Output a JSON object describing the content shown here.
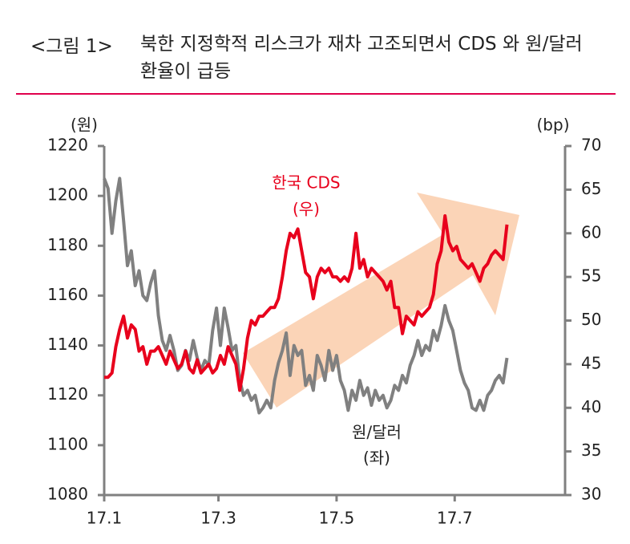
{
  "chart_data": {
    "type": "line",
    "figure_label": "<그림 1>",
    "title": "북한 지정학적 리스크가 재차 고조되면서 CDS 와 원/달러 환율이 급등",
    "y_label": "(원)",
    "y2_label": "(bp)",
    "xlim": [
      0,
      238
    ],
    "xticks": [
      {
        "value": 0,
        "label": "17.1"
      },
      {
        "value": 59,
        "label": "17.3"
      },
      {
        "value": 120,
        "label": "17.5"
      },
      {
        "value": 181,
        "label": "17.7"
      }
    ],
    "ylim": [
      1080,
      1220
    ],
    "yticks": [
      1080,
      1100,
      1120,
      1140,
      1160,
      1180,
      1200,
      1220
    ],
    "y2lim": [
      30,
      70
    ],
    "y2ticks": [
      30,
      35,
      40,
      45,
      50,
      55,
      60,
      65,
      70
    ],
    "annotations": [
      "(우)",
      "(좌)"
    ],
    "x": [
      0,
      2,
      4,
      6,
      8,
      10,
      12,
      14,
      16,
      18,
      20,
      22,
      24,
      26,
      28,
      30,
      32,
      34,
      36,
      38,
      40,
      42,
      44,
      46,
      48,
      50,
      52,
      54,
      56,
      58,
      60,
      62,
      64,
      66,
      68,
      70,
      72,
      74,
      76,
      78,
      80,
      82,
      84,
      86,
      88,
      90,
      92,
      94,
      96,
      98,
      100,
      102,
      104,
      106,
      108,
      110,
      112,
      114,
      116,
      118,
      120,
      122,
      124,
      126,
      128,
      130,
      132,
      134,
      136,
      138,
      140,
      142,
      144,
      146,
      148,
      150,
      152,
      154,
      156,
      158,
      160,
      162,
      164,
      166,
      168,
      170,
      172,
      174,
      176,
      178,
      180,
      182,
      184,
      186,
      188,
      190,
      192,
      194,
      196,
      198,
      200,
      202,
      204,
      206,
      208
    ],
    "series": [
      {
        "name": "원/달러",
        "color": "#808080",
        "axis": "y",
        "values": [
          1207,
          1203,
          1185,
          1198,
          1207,
          1190,
          1172,
          1178,
          1164,
          1170,
          1160,
          1158,
          1165,
          1170,
          1152,
          1142,
          1138,
          1144,
          1138,
          1130,
          1132,
          1138,
          1134,
          1142,
          1135,
          1130,
          1134,
          1132,
          1146,
          1155,
          1140,
          1155,
          1147,
          1138,
          1140,
          1126,
          1120,
          1122,
          1118,
          1120,
          1113,
          1115,
          1118,
          1115,
          1126,
          1133,
          1138,
          1145,
          1128,
          1140,
          1136,
          1138,
          1124,
          1128,
          1122,
          1136,
          1132,
          1126,
          1138,
          1130,
          1136,
          1126,
          1122,
          1114,
          1122,
          1118,
          1126,
          1120,
          1123,
          1116,
          1122,
          1118,
          1120,
          1115,
          1118,
          1124,
          1122,
          1128,
          1125,
          1132,
          1136,
          1142,
          1136,
          1140,
          1138,
          1146,
          1142,
          1148,
          1156,
          1150,
          1146,
          1138,
          1130,
          1125,
          1122,
          1115,
          1114,
          1118,
          1114,
          1120,
          1122,
          1126,
          1128,
          1125,
          1135
        ]
      },
      {
        "name": "한국 CDS",
        "color": "#e8001c",
        "axis": "y2",
        "values": [
          43.5,
          43.5,
          44,
          47,
          49,
          50.5,
          48,
          49.5,
          49,
          46.5,
          47,
          45,
          46.5,
          46.5,
          47,
          46,
          45,
          46.5,
          45.5,
          44.5,
          45,
          46.5,
          44.5,
          44,
          45.5,
          44,
          44.5,
          45,
          44,
          44.5,
          46,
          45,
          47,
          46,
          45,
          42,
          44.5,
          48,
          50,
          49.5,
          50.5,
          50.5,
          51,
          51.5,
          51.5,
          52.5,
          55,
          58,
          60,
          59.5,
          60.5,
          58,
          55.5,
          55,
          52.5,
          55,
          56,
          55.5,
          56,
          55,
          55,
          54.5,
          55,
          54.5,
          56,
          60,
          56,
          57,
          55,
          56,
          55.5,
          55,
          54.5,
          53.5,
          54.5,
          51.5,
          51.5,
          48.5,
          50.5,
          50,
          49.5,
          51,
          50.5,
          51,
          51.5,
          53,
          56.5,
          58,
          62,
          59,
          58,
          58.5,
          57,
          56.5,
          56,
          56.5,
          55.5,
          54.5,
          56,
          56.5,
          57.5,
          58,
          57.5,
          57,
          61
        ]
      }
    ]
  }
}
